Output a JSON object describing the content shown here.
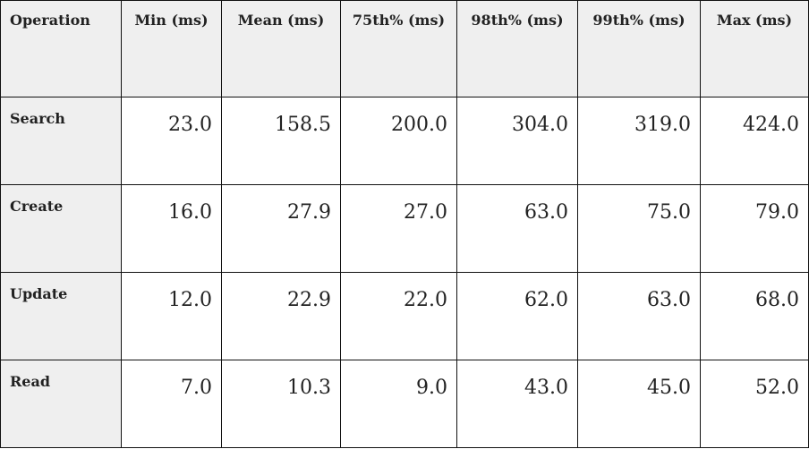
{
  "table": {
    "header": [
      "Operation",
      "Min (ms)",
      "Mean (ms)",
      "75th% (ms)",
      "98th% (ms)",
      "99th% (ms)",
      "Max (ms)"
    ],
    "rows": [
      [
        "Search",
        "23.0",
        "158.5",
        "200.0",
        "304.0",
        "319.0",
        "424.0"
      ],
      [
        "Create",
        "16.0",
        "27.9",
        "27.0",
        "63.0",
        "75.0",
        "79.0"
      ],
      [
        "Update",
        "12.0",
        "22.9",
        "22.0",
        "62.0",
        "63.0",
        "68.0"
      ],
      [
        "Read",
        "7.0",
        "10.3",
        "9.0",
        "43.0",
        "45.0",
        "52.0"
      ]
    ]
  }
}
